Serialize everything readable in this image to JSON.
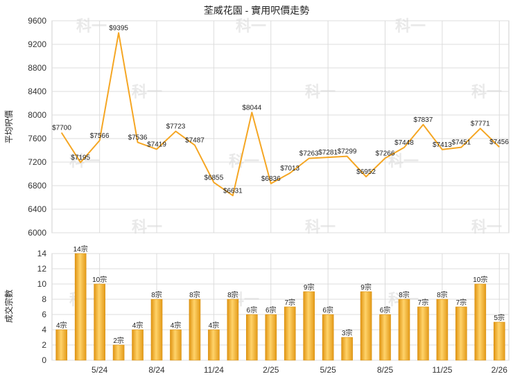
{
  "chart_data": [
    {
      "type": "line",
      "title": "荃威花園 - 實用呎價走勢",
      "ylabel": "平均呎價",
      "ylim": [
        6000,
        9600
      ],
      "yticks": [
        6000,
        6400,
        6800,
        7200,
        7600,
        8000,
        8400,
        8800,
        9200,
        9600
      ],
      "line_color": "#F5A623",
      "grid": true,
      "values": [
        7700,
        7195,
        7566,
        9395,
        7536,
        7419,
        7723,
        7487,
        6855,
        6631,
        8044,
        6836,
        7013,
        7263,
        7281,
        7299,
        6952,
        7266,
        7448,
        7837,
        7413,
        7451,
        7771,
        7456
      ],
      "labels": [
        "$7700",
        "$7195",
        "$7566",
        "$9395",
        "$7536",
        "$7419",
        "$7723",
        "$7487",
        "$6855",
        "$6631",
        "$8044",
        "$6836",
        "$7013",
        "$7263",
        "$7281",
        "$7299",
        "$6952",
        "$7266",
        "$7448",
        "$7837",
        "$7413",
        "$7451",
        "$7771",
        "$7456"
      ]
    },
    {
      "type": "bar",
      "ylabel": "成交宗數",
      "ylim": [
        0,
        14
      ],
      "yticks": [
        0,
        2,
        4,
        6,
        8,
        10,
        12,
        14
      ],
      "bar_color": "#F5A623",
      "grid": true,
      "values": [
        4,
        14,
        10,
        2,
        4,
        8,
        4,
        8,
        4,
        8,
        6,
        6,
        7,
        9,
        6,
        3,
        9,
        6,
        8,
        7,
        8,
        7,
        10,
        5
      ],
      "labels": [
        "4宗",
        "14宗",
        "10宗",
        "2宗",
        "4宗",
        "8宗",
        "4宗",
        "8宗",
        "4宗",
        "8宗",
        "6宗",
        "6宗",
        "7宗",
        "9宗",
        "6宗",
        "3宗",
        "9宗",
        "6宗",
        "8宗",
        "7宗",
        "8宗",
        "7宗",
        "10宗",
        "5宗"
      ],
      "x_ticks": [
        {
          "index": 2,
          "label": "5/24"
        },
        {
          "index": 5,
          "label": "8/24"
        },
        {
          "index": 8,
          "label": "11/24"
        },
        {
          "index": 11,
          "label": "2/25"
        },
        {
          "index": 14,
          "label": "5/25"
        },
        {
          "index": 17,
          "label": "8/25"
        },
        {
          "index": 20,
          "label": "11/25"
        },
        {
          "index": 23,
          "label": "2/26"
        }
      ]
    }
  ],
  "watermark": "科一"
}
